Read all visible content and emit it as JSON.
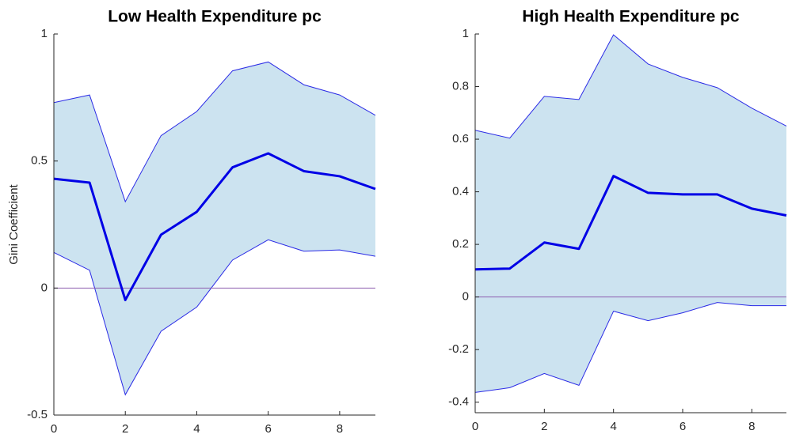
{
  "chart_data": [
    {
      "type": "line",
      "title": "Low Health Expenditure pc",
      "ylabel": "Gini Coefficient",
      "x": [
        0,
        1,
        2,
        3,
        4,
        5,
        6,
        7,
        8,
        9
      ],
      "values": [
        0.43,
        0.415,
        -0.047,
        0.21,
        0.3,
        0.475,
        0.53,
        0.46,
        0.44,
        0.39
      ],
      "upper": [
        0.73,
        0.76,
        0.34,
        0.6,
        0.695,
        0.855,
        0.89,
        0.8,
        0.76,
        0.68
      ],
      "lower": [
        0.14,
        0.07,
        -0.42,
        -0.17,
        -0.075,
        0.11,
        0.19,
        0.145,
        0.15,
        0.125
      ],
      "line_color": "#0000e6",
      "band_color": "#cce3f0",
      "band_edge_color": "#2a2ae6",
      "hline": 0,
      "hline_color": "#8e5fb0",
      "xlim": [
        0,
        9
      ],
      "xticks": [
        0,
        2,
        4,
        6,
        8
      ],
      "ylim": [
        -0.5,
        1
      ],
      "yticks": [
        -0.5,
        0,
        0.5,
        1
      ]
    },
    {
      "type": "line",
      "title": "High Health Expenditure pc",
      "x": [
        0,
        1,
        2,
        3,
        4,
        5,
        6,
        7,
        8,
        9
      ],
      "values": [
        0.105,
        0.108,
        0.207,
        0.183,
        0.46,
        0.396,
        0.39,
        0.39,
        0.336,
        0.31
      ],
      "upper": [
        0.634,
        0.604,
        0.763,
        0.751,
        0.997,
        0.886,
        0.835,
        0.796,
        0.718,
        0.65
      ],
      "lower": [
        -0.363,
        -0.345,
        -0.291,
        -0.336,
        -0.054,
        -0.09,
        -0.06,
        -0.021,
        -0.033,
        -0.033
      ],
      "line_color": "#0000e6",
      "band_color": "#cce3f0",
      "band_edge_color": "#2a2ae6",
      "hline": 0,
      "hline_color": "#8e5fb0",
      "xlim": [
        0,
        9
      ],
      "xticks": [
        0,
        2,
        4,
        6,
        8
      ],
      "ylim": [
        -0.44,
        1
      ],
      "yticks": [
        -0.4,
        -0.2,
        0,
        0.2,
        0.4,
        0.6,
        0.8,
        1
      ]
    }
  ]
}
